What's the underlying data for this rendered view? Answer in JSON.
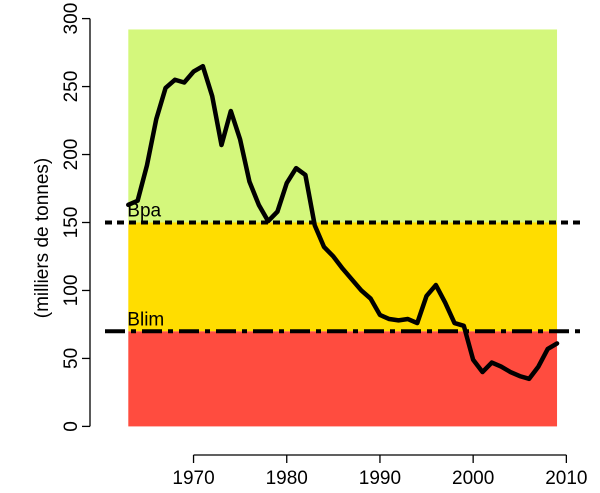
{
  "chart_data": {
    "type": "line",
    "ylabel": "(milliers de tonnes)",
    "xlabel": "",
    "xlim": [
      1960.5,
      2012
    ],
    "ylim": [
      -10,
      310
    ],
    "x_ticks": [
      1970,
      1980,
      1990,
      2000,
      2010
    ],
    "y_ticks": [
      0,
      50,
      100,
      150,
      200,
      250,
      300
    ],
    "zones": [
      {
        "name": "red",
        "from": 0,
        "to": 70,
        "color": "#ff4c3f"
      },
      {
        "name": "yellow",
        "from": 70,
        "to": 150,
        "color": "#ffdd00"
      },
      {
        "name": "green",
        "from": 150,
        "to": 292,
        "color": "#d4f77c"
      }
    ],
    "zone_x_range": [
      1963,
      2009
    ],
    "reference_lines": [
      {
        "label": "Bpa",
        "value": 150,
        "style": "dotted"
      },
      {
        "label": "Blim",
        "value": 70,
        "style": "dotdash"
      }
    ],
    "series": [
      {
        "x": [
          1963,
          1964,
          1965,
          1966,
          1967,
          1968,
          1969,
          1970,
          1971,
          1972,
          1973,
          1974,
          1975,
          1976,
          1977,
          1978,
          1979,
          1980,
          1981,
          1982,
          1983,
          1984,
          1985,
          1986,
          1987,
          1988,
          1989,
          1990,
          1991,
          1992,
          1993,
          1994,
          1995,
          1996,
          1997,
          1998,
          1999,
          2000,
          2001,
          2002,
          2003,
          2004,
          2005,
          2006,
          2007,
          2008,
          2009
        ],
        "values": [
          163,
          166,
          192,
          226,
          249,
          255,
          253,
          261,
          265,
          243,
          207,
          232,
          211,
          180,
          163,
          151,
          158,
          179,
          190,
          185,
          148,
          132,
          125,
          116,
          108,
          100,
          94,
          82,
          79,
          78,
          79,
          76,
          96,
          104,
          91,
          76,
          74,
          49,
          40,
          47,
          44,
          40,
          37,
          35,
          44,
          57,
          61
        ],
        "color": "#000000"
      }
    ]
  }
}
